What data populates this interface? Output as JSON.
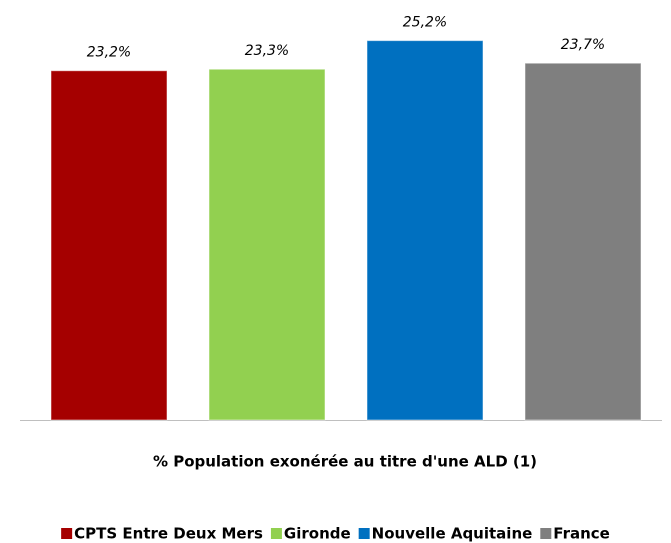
{
  "chart_data": {
    "type": "bar",
    "categories": [
      "% Population exonérée au titre d'une ALD (1)"
    ],
    "series": [
      {
        "name": "CPTS Entre Deux Mers",
        "color": "#a50000",
        "values": [
          23.2
        ],
        "value_labels": [
          "23,2%"
        ]
      },
      {
        "name": "Gironde",
        "color": "#92d050",
        "values": [
          23.3
        ],
        "value_labels": [
          "23,3%"
        ]
      },
      {
        "name": "Nouvelle Aquitaine",
        "color": "#0070c0",
        "values": [
          25.2
        ],
        "value_labels": [
          "25,2%"
        ]
      },
      {
        "name": "France",
        "color": "#7f7f7f",
        "values": [
          23.7
        ],
        "value_labels": [
          "23,7%"
        ]
      }
    ],
    "ylim": [
      0,
      27.5
    ],
    "legend": "bottom"
  }
}
